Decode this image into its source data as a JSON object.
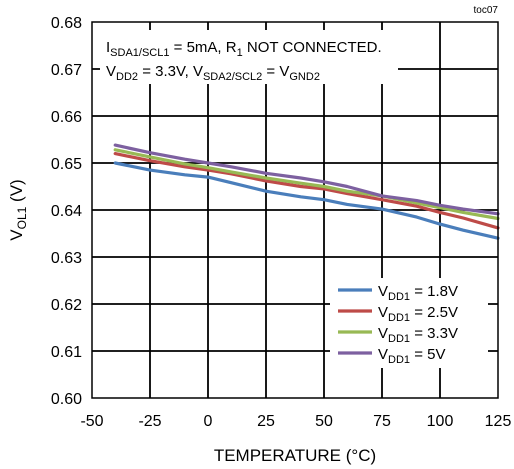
{
  "chart_data": {
    "type": "line",
    "tag": "toc07",
    "xlabel": "TEMPERATURE (°C)",
    "ylabel": {
      "main": "V",
      "sub": "OL1",
      "unit": " (V)"
    },
    "xlim": [
      -50,
      125
    ],
    "ylim": [
      0.6,
      0.68
    ],
    "xticks": [
      "-50",
      "-25",
      "0",
      "25",
      "50",
      "75",
      "100",
      "125"
    ],
    "yticks": [
      "0.60",
      "0.61",
      "0.62",
      "0.63",
      "0.64",
      "0.65",
      "0.66",
      "0.67",
      "0.68"
    ],
    "grid": true,
    "legend_position": "bottom-right",
    "annotation": [
      [
        {
          "t": "I",
          "s": "n"
        },
        {
          "t": "SDA1/SCL1",
          "s": "sub"
        },
        {
          "t": " = 5mA, R",
          "s": "n"
        },
        {
          "t": "1",
          "s": "sub"
        },
        {
          "t": " NOT CONNECTED.",
          "s": "n"
        }
      ],
      [
        {
          "t": "V",
          "s": "n"
        },
        {
          "t": "DD2",
          "s": "sub"
        },
        {
          "t": " = 3.3V, V",
          "s": "n"
        },
        {
          "t": "SDA2/SCL2",
          "s": "sub"
        },
        {
          "t": " = V",
          "s": "n"
        },
        {
          "t": "GND2",
          "s": "sub"
        }
      ]
    ],
    "series": [
      {
        "legend": [
          {
            "t": "V",
            "s": "n"
          },
          {
            "t": "DD1",
            "s": "sub"
          },
          {
            "t": " = 1.8V",
            "s": "n"
          }
        ],
        "color": "#4a7ebb",
        "x": [
          -40,
          -25,
          -10,
          0,
          10,
          25,
          40,
          50,
          60,
          75,
          90,
          100,
          110,
          125
        ],
        "y": [
          0.65,
          0.6485,
          0.6475,
          0.647,
          0.6458,
          0.644,
          0.6428,
          0.6422,
          0.6412,
          0.6402,
          0.6385,
          0.637,
          0.6357,
          0.634
        ]
      },
      {
        "legend": [
          {
            "t": "V",
            "s": "n"
          },
          {
            "t": "DD1",
            "s": "sub"
          },
          {
            "t": " = 2.5V",
            "s": "n"
          }
        ],
        "color": "#be4b48",
        "x": [
          -40,
          -25,
          -10,
          0,
          10,
          25,
          40,
          50,
          60,
          75,
          90,
          100,
          110,
          125
        ],
        "y": [
          0.652,
          0.6505,
          0.6492,
          0.6485,
          0.6477,
          0.6462,
          0.645,
          0.6445,
          0.6435,
          0.6422,
          0.6408,
          0.6395,
          0.6383,
          0.6362
        ]
      },
      {
        "legend": [
          {
            "t": "V",
            "s": "n"
          },
          {
            "t": "DD1",
            "s": "sub"
          },
          {
            "t": " = 3.3V",
            "s": "n"
          }
        ],
        "color": "#98b954",
        "x": [
          -40,
          -25,
          -10,
          0,
          10,
          25,
          40,
          50,
          60,
          75,
          90,
          100,
          110,
          125
        ],
        "y": [
          0.6528,
          0.6513,
          0.6498,
          0.649,
          0.6481,
          0.6468,
          0.6457,
          0.645,
          0.644,
          0.643,
          0.6415,
          0.6405,
          0.6395,
          0.6382
        ]
      },
      {
        "legend": [
          {
            "t": "V",
            "s": "n"
          },
          {
            "t": "DD1",
            "s": "sub"
          },
          {
            "t": " = 5V",
            "s": "n"
          }
        ],
        "color": "#7d60a0",
        "x": [
          -40,
          -25,
          -10,
          0,
          10,
          25,
          40,
          50,
          60,
          75,
          90,
          100,
          110,
          125
        ],
        "y": [
          0.6538,
          0.6522,
          0.6508,
          0.65,
          0.6492,
          0.6478,
          0.6468,
          0.646,
          0.645,
          0.643,
          0.642,
          0.641,
          0.6402,
          0.6392
        ]
      }
    ]
  }
}
